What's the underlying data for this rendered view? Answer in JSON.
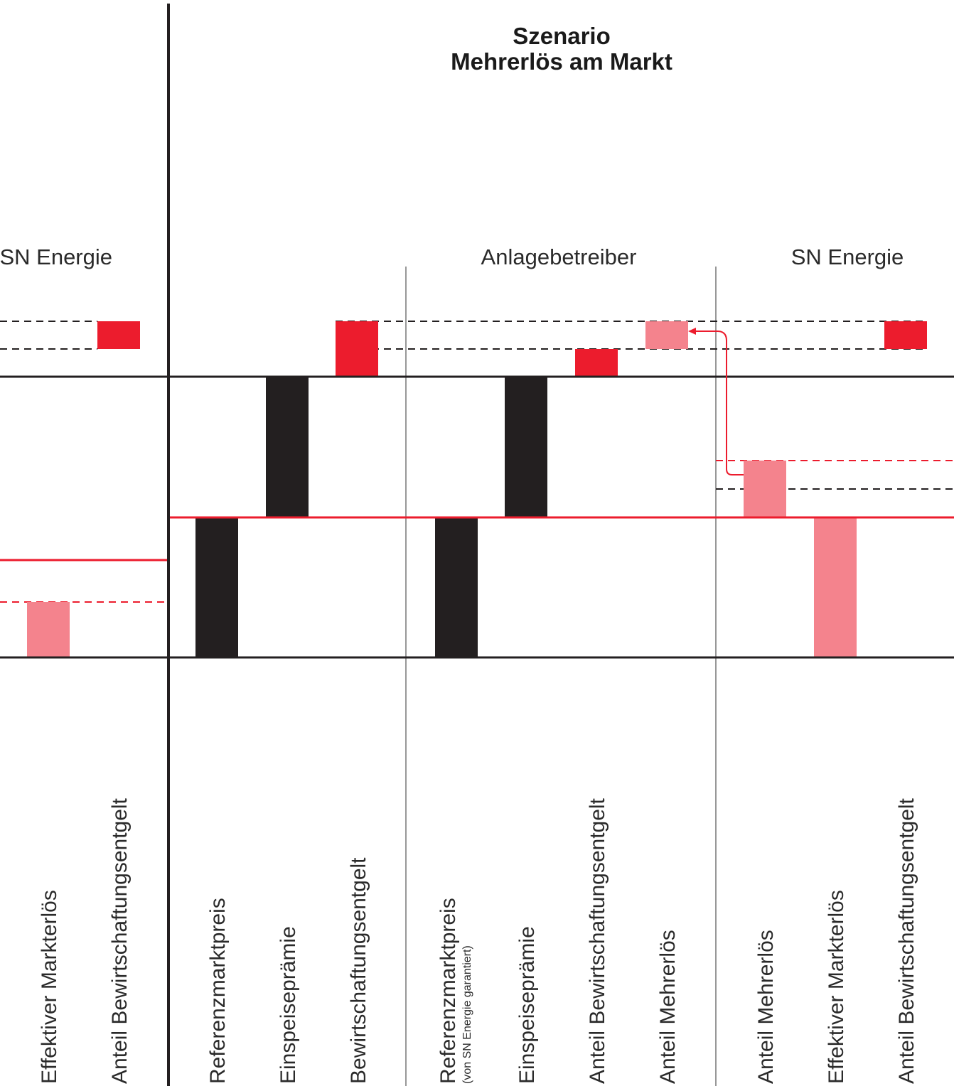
{
  "title": {
    "line1": "Szenario",
    "line2": "Mehrerlös am Markt"
  },
  "groups": {
    "left_partial": "SN Energie",
    "anlagebetreiber": "Anlagebetreiber",
    "sn_energie": "SN Energie"
  },
  "columns": [
    {
      "id": "left-effektiver-markterloes",
      "label": "Effektiver Markterlös",
      "color": "#f4838d"
    },
    {
      "id": "left-anteil-bewirtschaftungsentgelt",
      "label": "Anteil Bewirtschaftungsentgelt",
      "color": "#ec1c2d"
    },
    {
      "id": "referenzmarktpreis",
      "label": "Referenzmarktpreis",
      "color": "#231f20"
    },
    {
      "id": "einspeisepraemie",
      "label": "Einspeiseprämie",
      "color": "#231f20"
    },
    {
      "id": "bewirtschaftungsentgelt",
      "label": "Bewirtschaftungsentgelt",
      "color": "#ec1c2d"
    },
    {
      "id": "ab-referenzmarktpreis",
      "label": "Referenzmarktpreis",
      "sublabel": "(von SN Energie garantiert)",
      "color": "#231f20"
    },
    {
      "id": "ab-einspeisepraemie",
      "label": "Einspeiseprämie",
      "color": "#231f20"
    },
    {
      "id": "ab-anteil-bewirtschaftungsentgelt",
      "label": "Anteil Bewirtschaftungsentgelt",
      "color": "#ec1c2d"
    },
    {
      "id": "ab-anteil-mehrerloes",
      "label": "Anteil Mehrerlös",
      "color": "#f4838d"
    },
    {
      "id": "sn-anteil-mehrerloes",
      "label": "Anteil Mehrerlös",
      "color": "#f4838d"
    },
    {
      "id": "sn-effektiver-markterloes",
      "label": "Effektiver Markterlös",
      "color": "#f4838d"
    },
    {
      "id": "sn-anteil-bewirtschaftungsentgelt",
      "label": "Anteil Bewirtschaftungsentgelt",
      "color": "#ec1c2d"
    }
  ],
  "colors": {
    "black": "#231f20",
    "red": "#ec1c2d",
    "pink": "#f4838d",
    "grid": "#231f20"
  }
}
